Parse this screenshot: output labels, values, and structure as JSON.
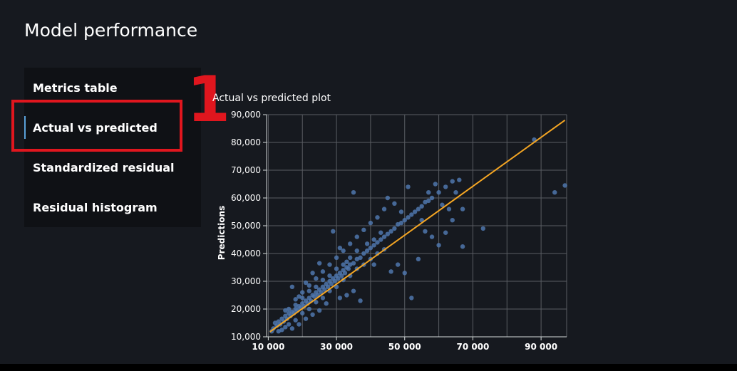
{
  "header": {
    "title": "Model performance"
  },
  "menu": {
    "items": [
      {
        "label": "Metrics table",
        "active": false
      },
      {
        "label": "Actual vs predicted",
        "active": true
      },
      {
        "label": "Standardized residual",
        "active": false
      },
      {
        "label": "Residual histogram",
        "active": false
      }
    ]
  },
  "annotation": {
    "step_number": "1",
    "color": "#e0161e"
  },
  "chart_data": {
    "type": "scatter",
    "title": "Actual vs predicted plot",
    "xlabel": "",
    "ylabel": "Predictions",
    "xlim": [
      9500,
      97500
    ],
    "ylim": [
      10000,
      90000
    ],
    "x_ticks": [
      10000,
      30000,
      50000,
      70000,
      90000
    ],
    "x_tick_labels": [
      "10 000",
      "30 000",
      "50 000",
      "70 000",
      "90 000"
    ],
    "y_ticks": [
      10000,
      20000,
      30000,
      40000,
      50000,
      60000,
      70000,
      80000,
      90000
    ],
    "y_tick_labels": [
      "10,000",
      "20,000",
      "30,000",
      "40,000",
      "50,000",
      "60,000",
      "70,000",
      "80,000",
      "90,000"
    ],
    "x_grid": [
      10000,
      20000,
      30000,
      40000,
      50000,
      60000,
      70000,
      80000,
      90000
    ],
    "grid": true,
    "point_color": "#4f77ad",
    "line_color": "#f5a623",
    "fit_line": [
      [
        10500,
        11800
      ],
      [
        97000,
        88000
      ]
    ],
    "series": [
      {
        "points": [
          [
            11500,
            13000
          ],
          [
            12500,
            14000
          ],
          [
            13000,
            15500
          ],
          [
            13500,
            14500
          ],
          [
            14000,
            16500
          ],
          [
            14500,
            15500
          ],
          [
            15000,
            17500
          ],
          [
            15500,
            16500
          ],
          [
            16000,
            18500
          ],
          [
            16500,
            17500
          ],
          [
            17000,
            19000
          ],
          [
            17500,
            18500
          ],
          [
            18000,
            20000
          ],
          [
            18500,
            19500
          ],
          [
            19000,
            21000
          ],
          [
            19500,
            20500
          ],
          [
            20000,
            22000
          ],
          [
            20500,
            21000
          ],
          [
            21000,
            23000
          ],
          [
            21500,
            22000
          ],
          [
            22000,
            24000
          ],
          [
            22500,
            23000
          ],
          [
            23000,
            25000
          ],
          [
            23500,
            24500
          ],
          [
            24000,
            26000
          ],
          [
            24500,
            25000
          ],
          [
            25000,
            27000
          ],
          [
            25500,
            26000
          ],
          [
            26000,
            28000
          ],
          [
            26500,
            27000
          ],
          [
            27000,
            29000
          ],
          [
            27500,
            28000
          ],
          [
            28000,
            30000
          ],
          [
            28500,
            29000
          ],
          [
            29000,
            31000
          ],
          [
            29500,
            30000
          ],
          [
            30000,
            32000
          ],
          [
            30500,
            31000
          ],
          [
            31000,
            33000
          ],
          [
            31500,
            32000
          ],
          [
            32000,
            34000
          ],
          [
            32500,
            33000
          ],
          [
            33000,
            35000
          ],
          [
            33500,
            34500
          ],
          [
            34000,
            36000
          ],
          [
            35000,
            36500
          ],
          [
            36000,
            38000
          ],
          [
            37000,
            38500
          ],
          [
            38000,
            40000
          ],
          [
            39000,
            41000
          ],
          [
            40000,
            42000
          ],
          [
            41000,
            43000
          ],
          [
            42000,
            44000
          ],
          [
            43000,
            45000
          ],
          [
            44000,
            46000
          ],
          [
            45000,
            47000
          ],
          [
            46000,
            48000
          ],
          [
            47000,
            49000
          ],
          [
            48000,
            50500
          ],
          [
            49000,
            51000
          ],
          [
            50000,
            52000
          ],
          [
            51000,
            53000
          ],
          [
            52000,
            54000
          ],
          [
            53000,
            55000
          ],
          [
            54000,
            56000
          ],
          [
            55000,
            57000
          ],
          [
            56000,
            58500
          ],
          [
            57000,
            59000
          ],
          [
            58000,
            60000
          ],
          [
            60000,
            62000
          ],
          [
            62000,
            64000
          ],
          [
            64000,
            66000
          ],
          [
            14000,
            12500
          ],
          [
            16000,
            14500
          ],
          [
            18000,
            16000
          ],
          [
            20000,
            18500
          ],
          [
            22000,
            20000
          ],
          [
            24000,
            22500
          ],
          [
            26000,
            24000
          ],
          [
            28000,
            26500
          ],
          [
            30000,
            28000
          ],
          [
            32000,
            30500
          ],
          [
            34000,
            32000
          ],
          [
            36000,
            34500
          ],
          [
            38000,
            36000
          ],
          [
            40000,
            38000
          ],
          [
            42000,
            40000
          ],
          [
            44000,
            41500
          ],
          [
            12000,
            15000
          ],
          [
            15000,
            19500
          ],
          [
            18000,
            23500
          ],
          [
            20000,
            26000
          ],
          [
            22000,
            28500
          ],
          [
            24000,
            31000
          ],
          [
            26000,
            33500
          ],
          [
            28000,
            36000
          ],
          [
            30000,
            38500
          ],
          [
            32000,
            41000
          ],
          [
            34000,
            43500
          ],
          [
            36000,
            46000
          ],
          [
            38000,
            48500
          ],
          [
            40000,
            51000
          ],
          [
            42000,
            53000
          ],
          [
            44000,
            56000
          ],
          [
            17000,
            28000
          ],
          [
            19000,
            24500
          ],
          [
            21000,
            29500
          ],
          [
            23000,
            33000
          ],
          [
            25000,
            36500
          ],
          [
            29000,
            48000
          ],
          [
            31000,
            42000
          ],
          [
            33000,
            37000
          ],
          [
            35000,
            62000
          ],
          [
            39000,
            43500
          ],
          [
            41000,
            45000
          ],
          [
            43000,
            47500
          ],
          [
            45000,
            60000
          ],
          [
            47000,
            58000
          ],
          [
            49000,
            55000
          ],
          [
            51000,
            64000
          ],
          [
            55000,
            52000
          ],
          [
            57000,
            62000
          ],
          [
            59000,
            65000
          ],
          [
            61000,
            57500
          ],
          [
            63000,
            56000
          ],
          [
            65000,
            62000
          ],
          [
            66000,
            66500
          ],
          [
            67000,
            42500
          ],
          [
            67000,
            56000
          ],
          [
            73000,
            49000
          ],
          [
            88000,
            81000
          ],
          [
            94000,
            62000
          ],
          [
            97000,
            64500
          ],
          [
            52000,
            24000
          ],
          [
            41000,
            36000
          ],
          [
            46000,
            33500
          ],
          [
            48000,
            36000
          ],
          [
            50000,
            33000
          ],
          [
            54000,
            38000
          ],
          [
            56000,
            48000
          ],
          [
            58000,
            46000
          ],
          [
            60000,
            43000
          ],
          [
            62000,
            47500
          ],
          [
            64000,
            52000
          ],
          [
            37000,
            23000
          ],
          [
            35000,
            26500
          ],
          [
            33000,
            25000
          ],
          [
            31000,
            24000
          ],
          [
            27000,
            22000
          ],
          [
            25000,
            19500
          ],
          [
            23000,
            18000
          ],
          [
            21000,
            16500
          ],
          [
            19000,
            14500
          ],
          [
            17000,
            13000
          ],
          [
            15000,
            13500
          ],
          [
            13000,
            12000
          ],
          [
            11000,
            12000
          ],
          [
            16000,
            20000
          ],
          [
            18000,
            21500
          ],
          [
            20000,
            24000
          ],
          [
            22000,
            26500
          ],
          [
            24000,
            28000
          ],
          [
            26000,
            30500
          ],
          [
            28000,
            32000
          ],
          [
            30000,
            34500
          ],
          [
            32000,
            36000
          ],
          [
            34000,
            38500
          ],
          [
            36000,
            41000
          ]
        ]
      }
    ]
  }
}
